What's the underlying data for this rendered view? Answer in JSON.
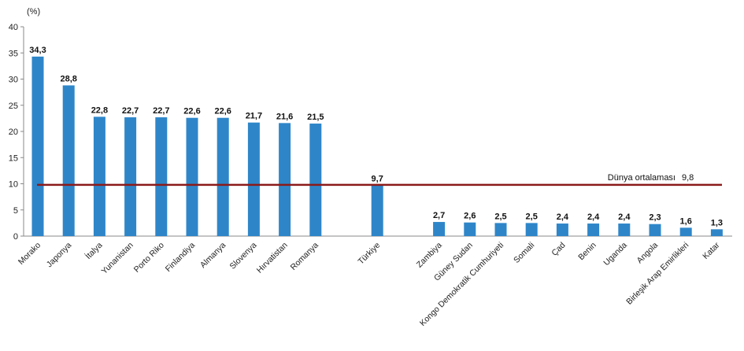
{
  "chart_data": {
    "type": "bar",
    "unit_label": "(%)",
    "ylim": [
      0,
      40
    ],
    "yticks": [
      0,
      5,
      10,
      15,
      20,
      25,
      30,
      35,
      40
    ],
    "grid": false,
    "categories": [
      "Morako",
      "Japonya",
      "İtalya",
      "Yunanistan",
      "Porto Riko",
      "Finlandiya",
      "Almanya",
      "Slovenya",
      "Hırvatistan",
      "Romanya",
      "",
      "Türkiye",
      "",
      "Zambiya",
      "Güney Sudan",
      "Kongo Demokratik Cumhuriyeti",
      "Somali",
      "Çad",
      "Benin",
      "Uganda",
      "Angola",
      "Birleşik Arap Emirlikleri",
      "Katar"
    ],
    "values": [
      34.3,
      28.8,
      22.8,
      22.7,
      22.7,
      22.6,
      22.6,
      21.7,
      21.6,
      21.5,
      null,
      9.7,
      null,
      2.7,
      2.6,
      2.5,
      2.5,
      2.4,
      2.4,
      2.4,
      2.3,
      1.6,
      1.3
    ],
    "value_labels": [
      "34,3",
      "28,8",
      "22,8",
      "22,7",
      "22,7",
      "22,6",
      "22,6",
      "21,7",
      "21,6",
      "21,5",
      "",
      "9,7",
      "",
      "2,7",
      "2,6",
      "2,5",
      "2,5",
      "2,4",
      "2,4",
      "2,4",
      "2,3",
      "1,6",
      "1,3"
    ],
    "reference_line": {
      "value": 9.8,
      "label": "Dünya ortalaması",
      "value_label": "9,8",
      "color": "#8b1a1a"
    },
    "bar_color": "#2e86c9"
  }
}
